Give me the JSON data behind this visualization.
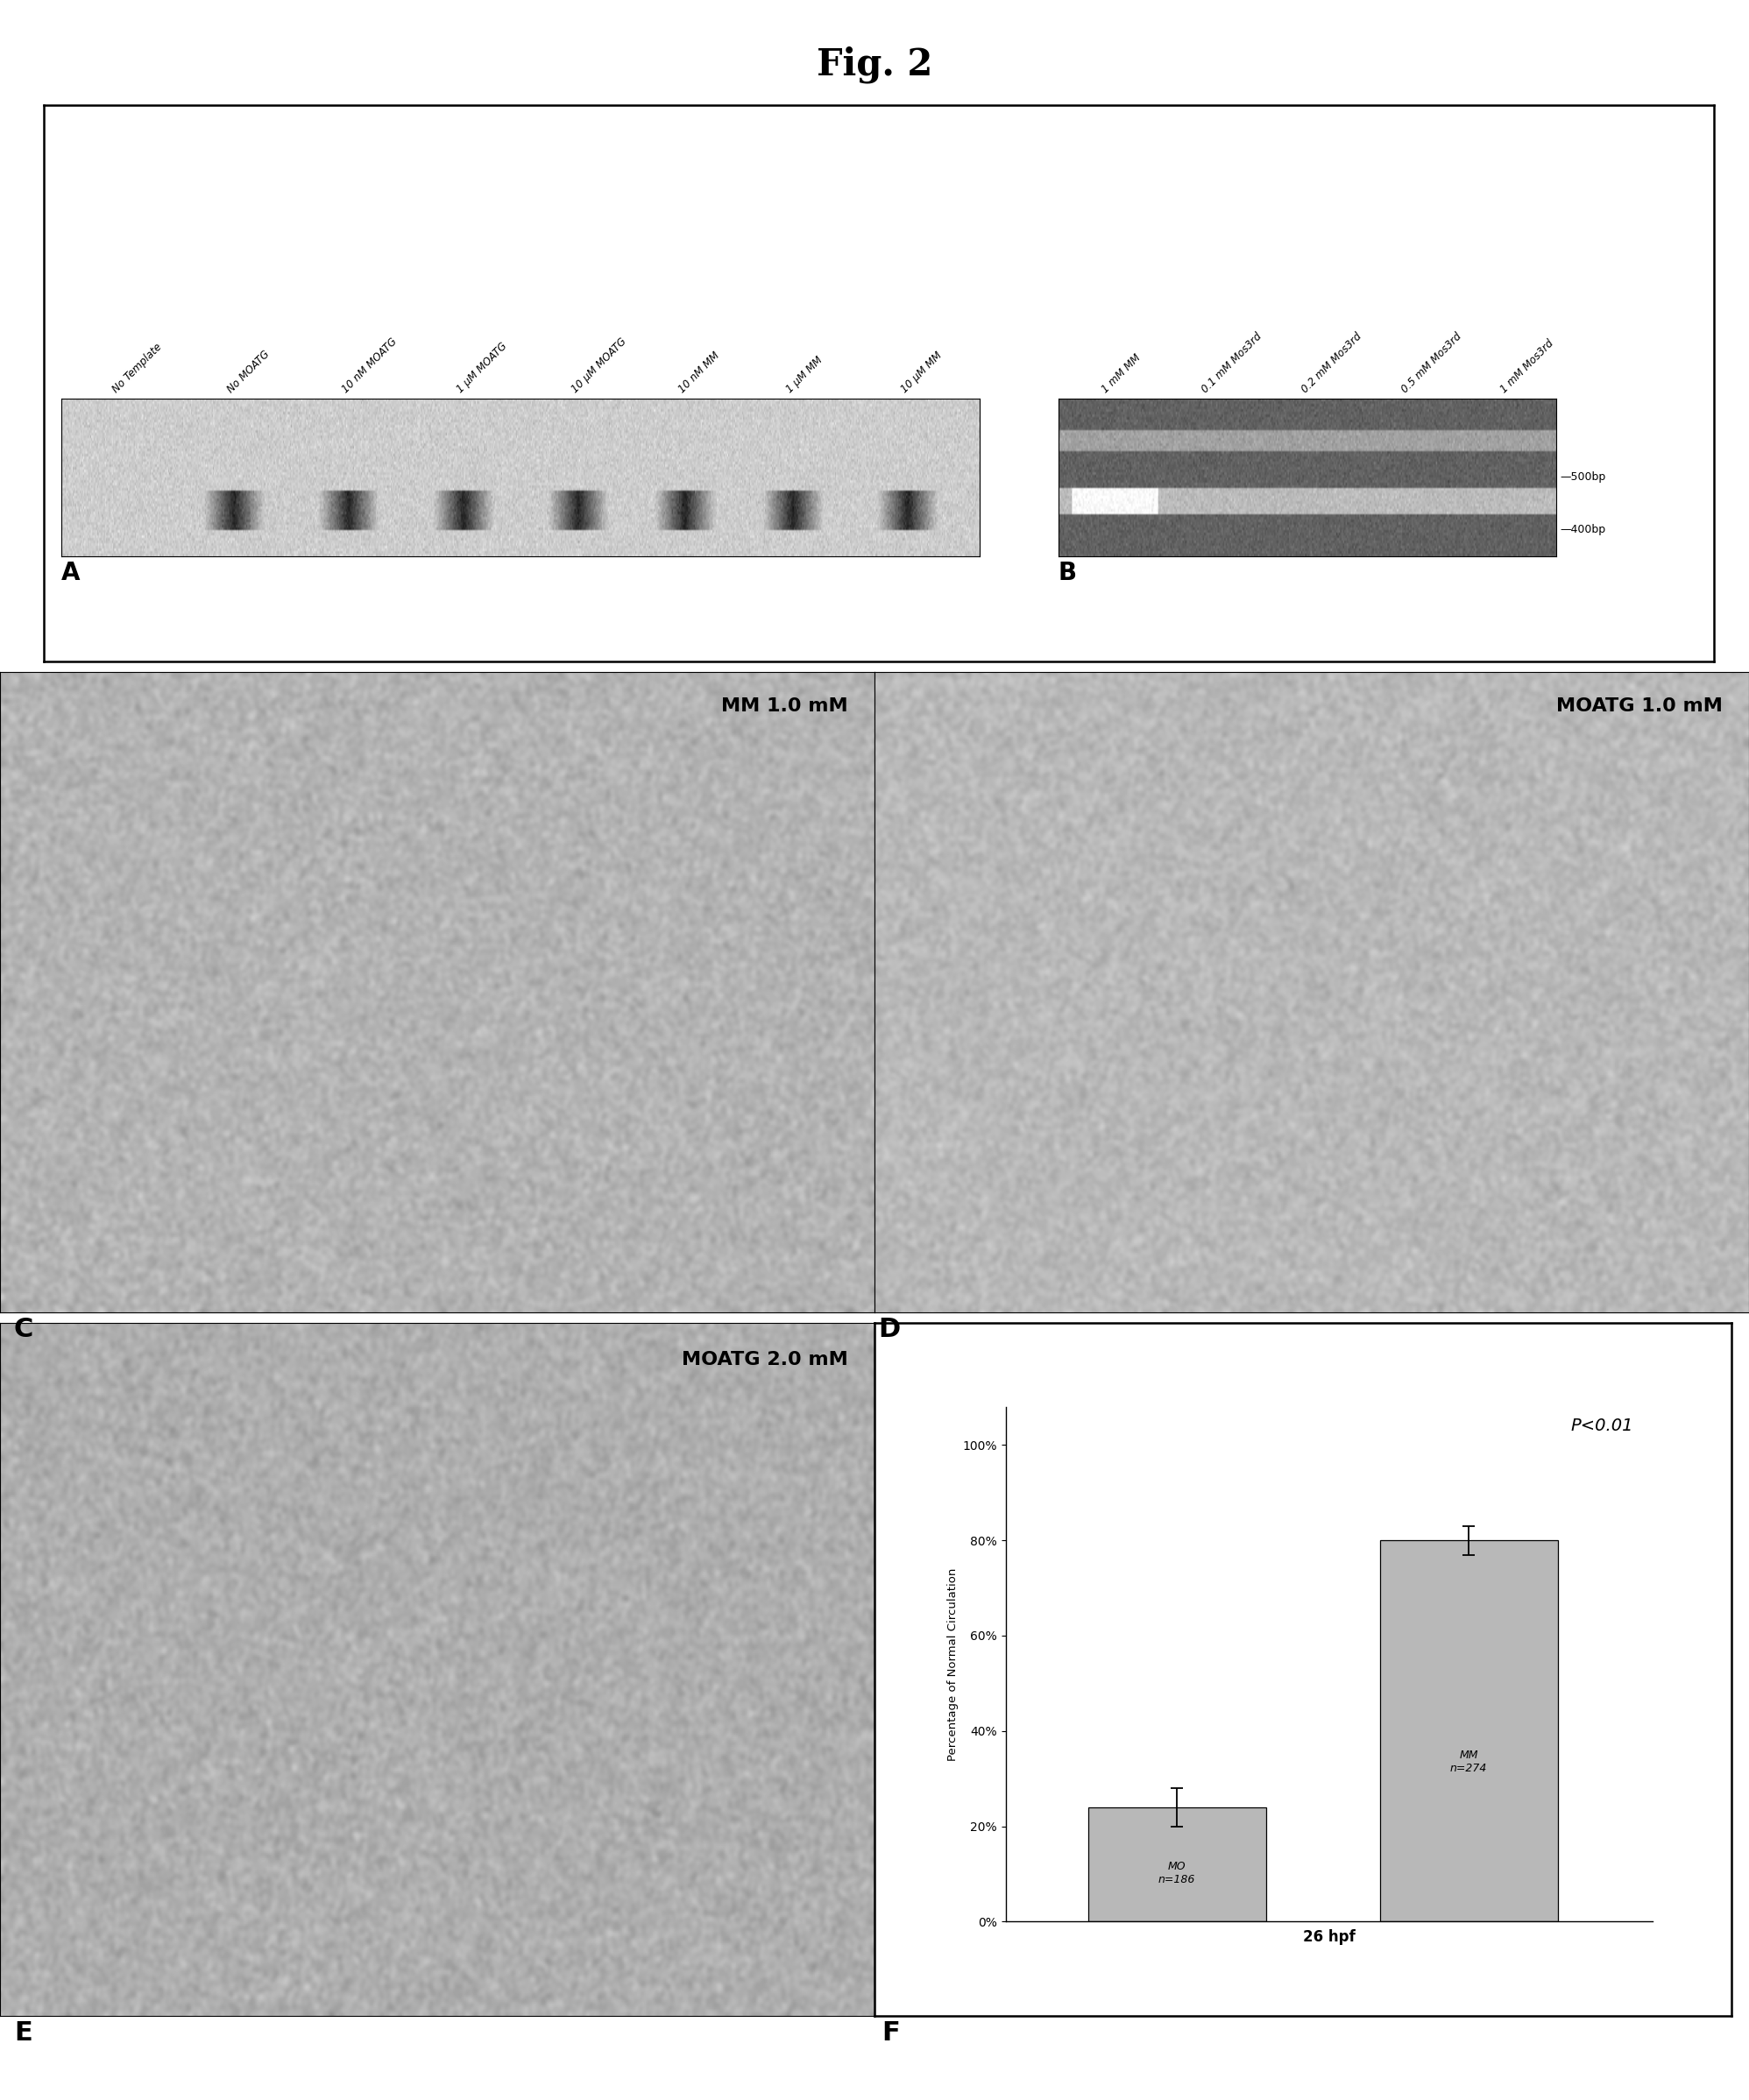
{
  "title": "Fig. 2",
  "title_fontsize": 30,
  "title_fontweight": "bold",
  "panel_A_label": "A",
  "panel_B_label": "B",
  "panel_C_label": "C",
  "panel_D_label": "D",
  "panel_E_label": "E",
  "panel_F_label": "F",
  "panel_A_cols": [
    "No Template",
    "No MOATG",
    "10 nM MOATG",
    "1 μM MOATG",
    "10 μM MOATG",
    "10 nM MM",
    "1 μM MM",
    "10 μM MM"
  ],
  "panel_B_cols": [
    "1 mM MM",
    "0.1 mM Mos3rd",
    "0.2 mM Mos3rd",
    "0.5 mM Mos3rd",
    "1 mM Mos3rd"
  ],
  "panel_C_label_text": "MM 1.0 mM",
  "panel_D_label_text": "MOATG 1.0 mM",
  "panel_E_label_text": "MOATG 2.0 mM",
  "bar_values": [
    24,
    80
  ],
  "bar_errors": [
    4,
    3
  ],
  "bar_label1": "MO\nn=186",
  "bar_label2": "MM\nn=274",
  "bar_color": "#b8b8b8",
  "ylabel": "Percentage of Normal Circulation",
  "xlabel": "26 hpf",
  "ytick_labels": [
    "0%",
    "20%",
    "40%",
    "60%",
    "80%",
    "100%"
  ],
  "p_value_text": "P<0.01",
  "fish_bg_color": "#a8a8a8",
  "bg_color": "#ffffff",
  "border_color": "#000000"
}
